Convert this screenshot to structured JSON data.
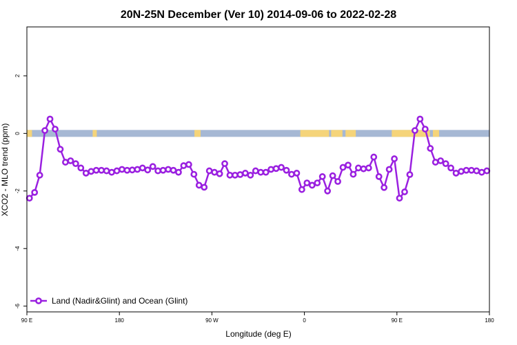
{
  "chart_data": {
    "type": "line",
    "title": "20N-25N December (Ver 10)   2014-09-06 to 2022-02-28",
    "xlabel": "Longitude (deg E)",
    "ylabel": "XCO2 - MLO trend (ppm)",
    "xlim": [
      90,
      540
    ],
    "ylim": [
      -6.2,
      3.7
    ],
    "x_ticks": [
      {
        "value": 90,
        "label": "90 E"
      },
      {
        "value": 180,
        "label": "180"
      },
      {
        "value": 270,
        "label": "90 W"
      },
      {
        "value": 360,
        "label": "0"
      },
      {
        "value": 450,
        "label": "90 E"
      },
      {
        "value": 540,
        "label": "180"
      }
    ],
    "y_ticks": [
      {
        "value": 2,
        "label": "2"
      },
      {
        "value": 0,
        "label": "0"
      },
      {
        "value": -2,
        "label": "-2"
      },
      {
        "value": -4,
        "label": "-4"
      },
      {
        "value": -6,
        "label": "-6"
      }
    ],
    "legend": {
      "position": "bottom-left",
      "label": "Land (Nadir&Glint) and Ocean (Glint)"
    },
    "colors": {
      "series": "#9a20e0",
      "ocean": "#a6b8d4",
      "land": "#f5d47a"
    },
    "land_mask_x": [
      [
        85,
        95
      ],
      [
        154,
        158
      ],
      [
        253,
        259
      ],
      [
        356,
        384
      ],
      [
        386,
        397
      ],
      [
        400,
        410
      ],
      [
        445,
        482
      ],
      [
        485,
        491
      ]
    ],
    "series": [
      {
        "name": "Land (Nadir&Glint) and Ocean (Glint)",
        "x": [
          92.5,
          97.5,
          102.5,
          107.5,
          112.5,
          117.5,
          122.5,
          127.5,
          132.5,
          137.5,
          142.5,
          147.5,
          152.5,
          157.5,
          162.5,
          167.5,
          172.5,
          177.5,
          182.5,
          187.5,
          192.5,
          197.5,
          202.5,
          207.5,
          212.5,
          217.5,
          222.5,
          227.5,
          232.5,
          237.5,
          242.5,
          247.5,
          252.5,
          257.5,
          262.5,
          267.5,
          272.5,
          277.5,
          282.5,
          287.5,
          292.5,
          297.5,
          302.5,
          307.5,
          312.5,
          317.5,
          322.5,
          327.5,
          332.5,
          337.5,
          342.5,
          347.5,
          352.5,
          357.5,
          362.5,
          367.5,
          372.5,
          377.5,
          382.5,
          387.5,
          392.5,
          397.5,
          402.5,
          407.5,
          412.5,
          417.5,
          422.5,
          427.5,
          432.5,
          437.5,
          442.5,
          447.5,
          452.5,
          457.5,
          462.5,
          467.5,
          472.5,
          477.5,
          482.5,
          487.5,
          492.5,
          497.5,
          502.5,
          507.5,
          512.5,
          517.5,
          522.5,
          527.5,
          532.5,
          537.5
        ],
        "y": [
          -2.25,
          -2.05,
          -1.45,
          0.1,
          0.5,
          0.15,
          -0.55,
          -1.0,
          -0.95,
          -1.05,
          -1.2,
          -1.38,
          -1.32,
          -1.28,
          -1.28,
          -1.3,
          -1.35,
          -1.3,
          -1.25,
          -1.28,
          -1.27,
          -1.25,
          -1.2,
          -1.27,
          -1.15,
          -1.3,
          -1.28,
          -1.25,
          -1.28,
          -1.35,
          -1.12,
          -1.08,
          -1.42,
          -1.8,
          -1.87,
          -1.3,
          -1.35,
          -1.4,
          -1.05,
          -1.45,
          -1.45,
          -1.43,
          -1.38,
          -1.45,
          -1.3,
          -1.35,
          -1.35,
          -1.25,
          -1.22,
          -1.18,
          -1.28,
          -1.42,
          -1.38,
          -1.95,
          -1.72,
          -1.8,
          -1.72,
          -1.5,
          -2.0,
          -1.47,
          -1.67,
          -1.18,
          -1.1,
          -1.42,
          -1.2,
          -1.23,
          -1.2,
          -0.82,
          -1.5,
          -1.88,
          -1.25,
          -0.88,
          -2.25,
          -2.03,
          -1.43,
          0.1,
          0.5,
          0.15,
          -0.52,
          -1.0,
          -0.95,
          -1.05,
          -1.2,
          -1.38,
          -1.32,
          -1.28,
          -1.28,
          -1.3,
          -1.35,
          -1.3
        ]
      }
    ]
  }
}
